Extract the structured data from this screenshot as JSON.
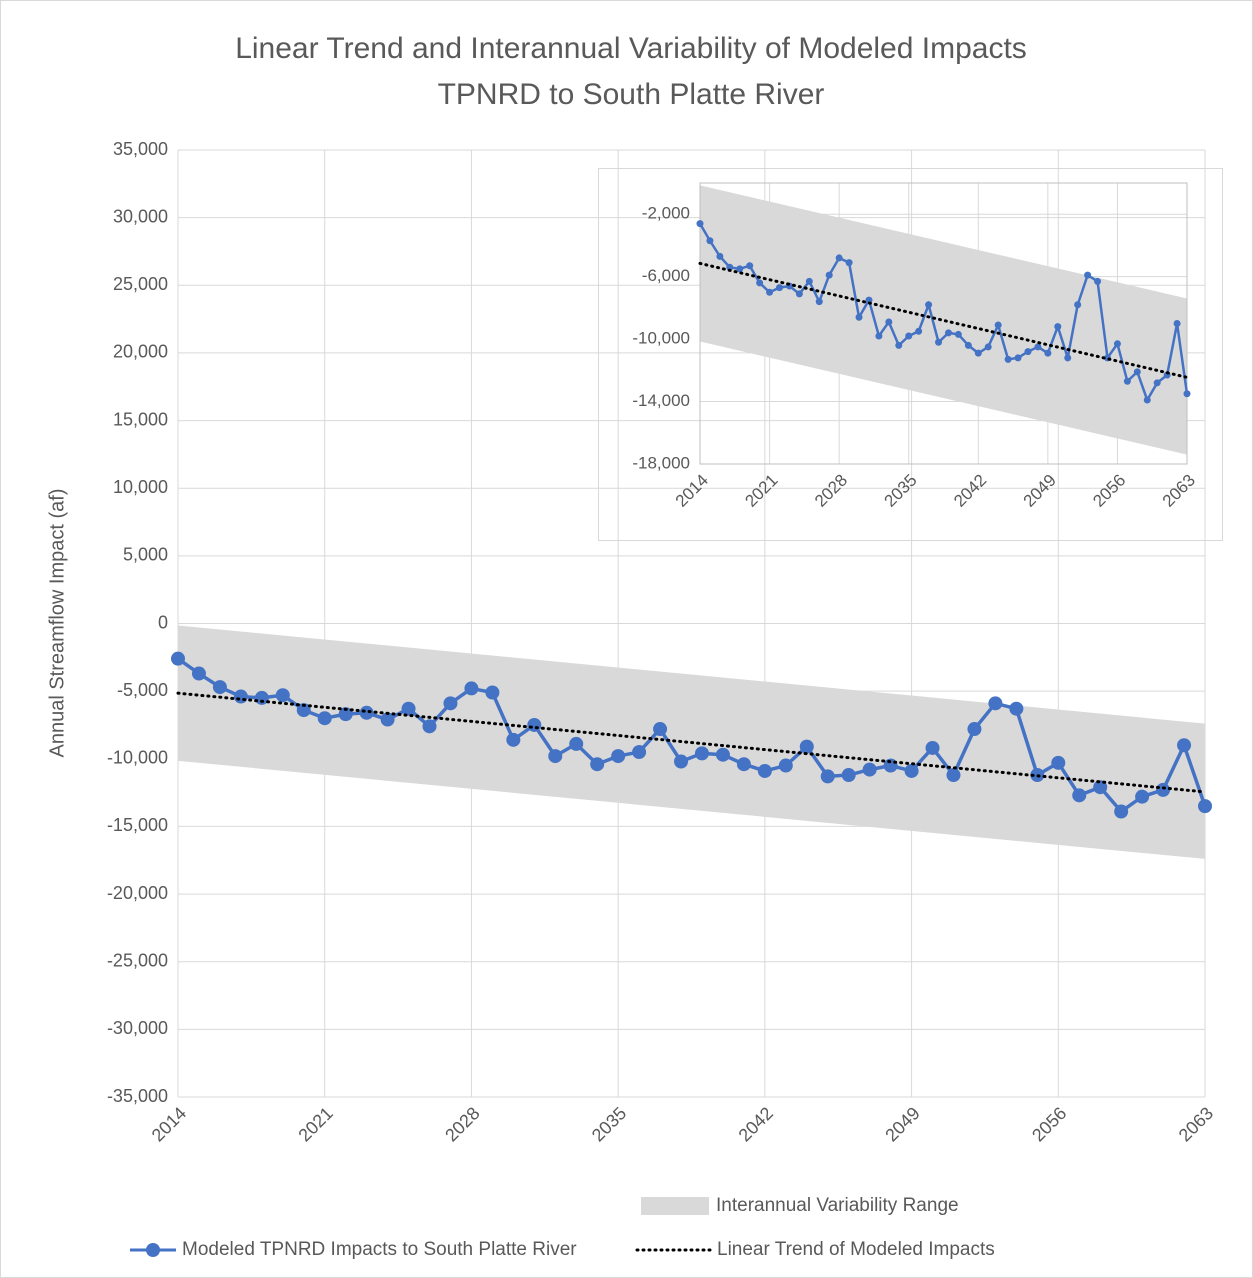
{
  "chart_data": [
    {
      "type": "line",
      "title": [
        "Linear Trend and Interannual Variability of Modeled Impacts",
        "TPNRD to South Platte River"
      ],
      "ylabel": "Annual Streamflow Impact (af)",
      "xlim": [
        2014,
        2063
      ],
      "xticks": [
        2014,
        2021,
        2028,
        2035,
        2042,
        2049,
        2056,
        2063
      ],
      "ylim": [
        -35000,
        35000
      ],
      "yticks": [
        {
          "value": 35000,
          "label": "35,000"
        },
        {
          "value": 30000,
          "label": "30,000"
        },
        {
          "value": 25000,
          "label": "25,000"
        },
        {
          "value": 20000,
          "label": "20,000"
        },
        {
          "value": 15000,
          "label": "15,000"
        },
        {
          "value": 10000,
          "label": "10,000"
        },
        {
          "value": 5000,
          "label": "5,000"
        },
        0,
        {
          "value": -5000,
          "label": "-5,000"
        },
        {
          "value": -10000,
          "label": "-10,000"
        },
        {
          "value": -15000,
          "label": "-15,000"
        },
        {
          "value": -20000,
          "label": "-20,000"
        },
        {
          "value": -25000,
          "label": "-25,000"
        },
        {
          "value": -30000,
          "label": "-30,000"
        },
        {
          "value": -35000,
          "label": "-35,000"
        }
      ],
      "grid": true,
      "legend": "bottom",
      "band": {
        "name": "Interannual Variability Range",
        "color": "#d9d9d9",
        "x": [
          2014,
          2063
        ],
        "upper": [
          -150,
          -7400
        ],
        "lower": [
          -10150,
          -17400
        ]
      },
      "series": [
        {
          "name": "Modeled TPNRD Impacts to South Platte River",
          "color": "#4472c4",
          "x": [
            2014,
            2015,
            2016,
            2017,
            2018,
            2019,
            2020,
            2021,
            2022,
            2023,
            2024,
            2025,
            2026,
            2027,
            2028,
            2029,
            2030,
            2031,
            2032,
            2033,
            2034,
            2035,
            2036,
            2037,
            2038,
            2039,
            2040,
            2041,
            2042,
            2043,
            2044,
            2045,
            2046,
            2047,
            2048,
            2049,
            2050,
            2051,
            2052,
            2053,
            2054,
            2055,
            2056,
            2057,
            2058,
            2059,
            2060,
            2061,
            2062,
            2063
          ],
          "values": [
            -2600,
            -3700,
            -4700,
            -5400,
            -5500,
            -5300,
            -6400,
            -7000,
            -6700,
            -6600,
            -7100,
            -6300,
            -7600,
            -5900,
            -4800,
            -5100,
            -8600,
            -7500,
            -9800,
            -8900,
            -10400,
            -9800,
            -9500,
            -7800,
            -10200,
            -9600,
            -9700,
            -10400,
            -10900,
            -10500,
            -9100,
            -11300,
            -11200,
            -10800,
            -10500,
            -10900,
            -9200,
            -11200,
            -7800,
            -5900,
            -6300,
            -11200,
            -10300,
            -12700,
            -12100,
            -13900,
            -12800,
            -12300,
            -9000,
            -13500
          ]
        },
        {
          "name": "Linear Trend of Modeled Impacts",
          "color": "#000000",
          "dotted": true,
          "x": [
            2014,
            2063
          ],
          "values": [
            -5150,
            -12450
          ]
        }
      ]
    },
    {
      "type": "line",
      "xlim": [
        2014,
        2063
      ],
      "xticks": [
        2014,
        2021,
        2028,
        2035,
        2042,
        2049,
        2056,
        2063
      ],
      "ylim": [
        -18000,
        0
      ],
      "yticks": [
        {
          "value": -2000,
          "label": "-2,000"
        },
        {
          "value": -6000,
          "label": "-6,000"
        },
        {
          "value": -10000,
          "label": "-10,000"
        },
        {
          "value": -14000,
          "label": "-14,000"
        },
        {
          "value": -18000,
          "label": "-18,000"
        }
      ],
      "grid": true,
      "band": {
        "color": "#d9d9d9",
        "x": [
          2014,
          2063
        ],
        "upper": [
          -150,
          -7400
        ],
        "lower": [
          -10150,
          -17400
        ]
      },
      "series": [
        {
          "color": "#4472c4",
          "x": [
            2014,
            2015,
            2016,
            2017,
            2018,
            2019,
            2020,
            2021,
            2022,
            2023,
            2024,
            2025,
            2026,
            2027,
            2028,
            2029,
            2030,
            2031,
            2032,
            2033,
            2034,
            2035,
            2036,
            2037,
            2038,
            2039,
            2040,
            2041,
            2042,
            2043,
            2044,
            2045,
            2046,
            2047,
            2048,
            2049,
            2050,
            2051,
            2052,
            2053,
            2054,
            2055,
            2056,
            2057,
            2058,
            2059,
            2060,
            2061,
            2062,
            2063
          ],
          "values": [
            -2600,
            -3700,
            -4700,
            -5400,
            -5500,
            -5300,
            -6400,
            -7000,
            -6700,
            -6600,
            -7100,
            -6300,
            -7600,
            -5900,
            -4800,
            -5100,
            -8600,
            -7500,
            -9800,
            -8900,
            -10400,
            -9800,
            -9500,
            -7800,
            -10200,
            -9600,
            -9700,
            -10400,
            -10900,
            -10500,
            -9100,
            -11300,
            -11200,
            -10800,
            -10500,
            -10900,
            -9200,
            -11200,
            -7800,
            -5900,
            -6300,
            -11200,
            -10300,
            -12700,
            -12100,
            -13900,
            -12800,
            -12300,
            -9000,
            -13500
          ]
        },
        {
          "color": "#000000",
          "dotted": true,
          "x": [
            2014,
            2063
          ],
          "values": [
            -5150,
            -12450
          ]
        }
      ]
    }
  ]
}
